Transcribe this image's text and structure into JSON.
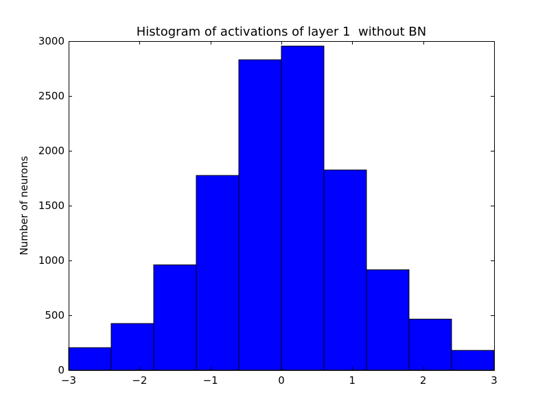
{
  "chart_data": {
    "type": "bar",
    "title": "Histogram of activations of layer 1  without BN",
    "xlabel": "",
    "ylabel": "Number of neurons",
    "xlim": [
      -3,
      3
    ],
    "ylim": [
      0,
      3000
    ],
    "bin_edges": [
      -3.0,
      -2.4,
      -1.8,
      -1.2,
      -0.6,
      0.0,
      0.6,
      1.2,
      1.8,
      2.4,
      3.0
    ],
    "values": [
      205,
      425,
      960,
      1775,
      2830,
      2955,
      1825,
      915,
      465,
      180
    ],
    "x_ticks": [
      {
        "value": -3,
        "label": "−3"
      },
      {
        "value": -2,
        "label": "−2"
      },
      {
        "value": -1,
        "label": "−1"
      },
      {
        "value": 0,
        "label": "0"
      },
      {
        "value": 1,
        "label": "1"
      },
      {
        "value": 2,
        "label": "2"
      },
      {
        "value": 3,
        "label": "3"
      }
    ],
    "y_ticks": [
      {
        "value": 0,
        "label": "0"
      },
      {
        "value": 500,
        "label": "500"
      },
      {
        "value": 1000,
        "label": "1000"
      },
      {
        "value": 1500,
        "label": "1500"
      },
      {
        "value": 2000,
        "label": "2000"
      },
      {
        "value": 2500,
        "label": "2500"
      },
      {
        "value": 3000,
        "label": "3000"
      }
    ],
    "bar_color": "#0000ff",
    "edge_color": "#000000",
    "grid": false,
    "legend": "none"
  }
}
